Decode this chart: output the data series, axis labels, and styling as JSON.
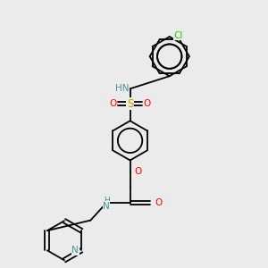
{
  "bg_color": "#ebebeb",
  "bond_color": "#000000",
  "atom_colors": {
    "N": "#4a9090",
    "O": "#ff0000",
    "S": "#c8a000",
    "Cl": "#22cc00",
    "C": "#000000"
  },
  "figsize": [
    3.0,
    3.0
  ],
  "dpi": 100
}
